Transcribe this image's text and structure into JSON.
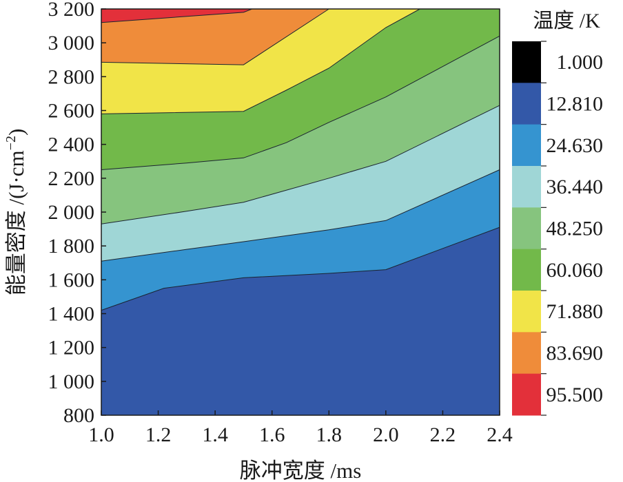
{
  "chart_data": {
    "type": "contour",
    "xlabel": "脉冲宽度 /ms",
    "ylabel_main": "能量密度 /(J·cm",
    "ylabel_sup": "−2",
    "ylabel_close": ")",
    "xlim": [
      1.0,
      2.4
    ],
    "ylim": [
      800,
      3200
    ],
    "x_ticks": [
      1.0,
      1.2,
      1.4,
      1.6,
      1.8,
      2.0,
      2.2,
      2.4
    ],
    "x_tick_labels": [
      "1.0",
      "1.2",
      "1.4",
      "1.6",
      "1.8",
      "2.0",
      "2.2",
      "2.4"
    ],
    "y_ticks": [
      800,
      1000,
      1200,
      1400,
      1600,
      1800,
      2000,
      2200,
      2400,
      2600,
      2800,
      3000,
      3200
    ],
    "y_tick_labels": [
      "800",
      "1 000",
      "1 200",
      "1 400",
      "1 600",
      "1 800",
      "2 000",
      "2 200",
      "2 400",
      "2 600",
      "2 800",
      "3 000",
      "3 200"
    ],
    "colorbar": {
      "title": "温度 /K",
      "levels": [
        "1.000",
        "12.810",
        "24.630",
        "36.440",
        "48.250",
        "60.060",
        "71.880",
        "83.690",
        "95.500"
      ],
      "colors": [
        "#000000",
        "#3358a8",
        "#3594d0",
        "#9fd6d6",
        "#86c47e",
        "#72b94a",
        "#f1e448",
        "#ef8c3a",
        "#e3303a"
      ]
    },
    "band_fills": [
      "#3358a8",
      "#3594d0",
      "#9fd6d6",
      "#86c47e",
      "#72b94a",
      "#f1e448",
      "#ef8c3a",
      "#e3303a"
    ],
    "contours": [
      {
        "level": "12.810",
        "points": [
          [
            1.0,
            1420
          ],
          [
            1.22,
            1550
          ],
          [
            1.5,
            1612
          ],
          [
            1.8,
            1638
          ],
          [
            2.0,
            1660
          ],
          [
            2.4,
            1910
          ]
        ]
      },
      {
        "level": "24.630",
        "points": [
          [
            1.0,
            1710
          ],
          [
            1.3,
            1780
          ],
          [
            1.5,
            1825
          ],
          [
            1.8,
            1895
          ],
          [
            2.0,
            1950
          ],
          [
            2.4,
            2250
          ]
        ]
      },
      {
        "level": "36.440",
        "points": [
          [
            1.0,
            1930
          ],
          [
            1.3,
            2005
          ],
          [
            1.5,
            2058
          ],
          [
            1.8,
            2200
          ],
          [
            2.0,
            2300
          ],
          [
            2.4,
            2630
          ]
        ]
      },
      {
        "level": "48.250",
        "points": [
          [
            1.0,
            2250
          ],
          [
            1.3,
            2290
          ],
          [
            1.5,
            2320
          ],
          [
            1.65,
            2410
          ],
          [
            1.8,
            2530
          ],
          [
            2.0,
            2680
          ],
          [
            2.4,
            3040
          ]
        ]
      },
      {
        "level": "60.060",
        "points": [
          [
            1.0,
            2580
          ],
          [
            1.5,
            2595
          ],
          [
            1.65,
            2720
          ],
          [
            1.8,
            2850
          ],
          [
            2.0,
            3090
          ],
          [
            2.12,
            3200
          ]
        ]
      },
      {
        "level": "71.880",
        "points": [
          [
            1.0,
            2885
          ],
          [
            1.5,
            2870
          ],
          [
            1.8,
            3200
          ]
        ]
      },
      {
        "level": "83.690",
        "points": [
          [
            1.0,
            3120
          ],
          [
            1.5,
            3180
          ],
          [
            1.53,
            3200
          ]
        ]
      }
    ]
  }
}
